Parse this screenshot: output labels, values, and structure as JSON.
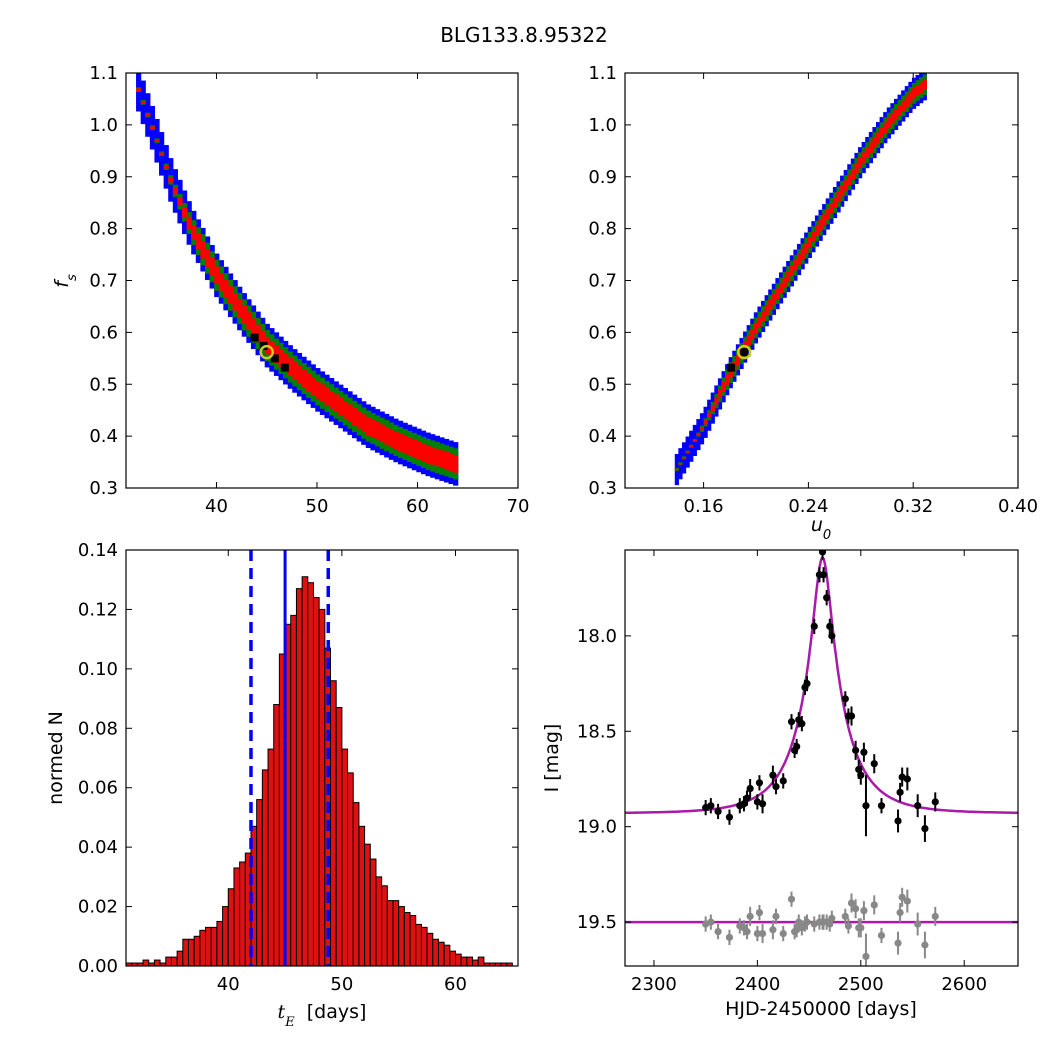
{
  "figure": {
    "title": "BLG133.8.95322"
  },
  "colors": {
    "c1": "#0000ff",
    "c2": "#008000",
    "c3": "#ff0000",
    "c4": "#000000",
    "bar_fill": "#dd1111",
    "bar_edge": "#000000",
    "median_line": "#0000ff",
    "model_line": "#aa1aaa",
    "marker_ring": "#cccc22",
    "points_main": "#000000",
    "points_resid": "#888888"
  },
  "chart_data": [
    {
      "type": "heatmap",
      "panel": "fs_vs_tE",
      "title": "",
      "xlabel": "",
      "ylabel": "f_s",
      "ylabel_main": "f",
      "ylabel_sub": "s",
      "xlim": [
        31,
        70
      ],
      "ylim": [
        0.3,
        1.1
      ],
      "xticks": [
        "40",
        "50",
        "60",
        "70"
      ],
      "xtick_values": [
        40,
        50,
        60,
        70
      ],
      "yticks": [
        "0.3",
        "0.4",
        "0.5",
        "0.6",
        "0.7",
        "0.8",
        "0.9",
        "1.0",
        "1.1"
      ],
      "ytick_values": [
        0.3,
        0.4,
        0.5,
        0.6,
        0.7,
        0.8,
        0.9,
        1.0,
        1.1
      ],
      "ridge": [
        [
          32.0,
          1.08
        ],
        [
          33.5,
          1.0
        ],
        [
          35.5,
          0.89
        ],
        [
          37.5,
          0.8
        ],
        [
          40.0,
          0.71
        ],
        [
          42.5,
          0.64
        ],
        [
          45.0,
          0.575
        ],
        [
          47.5,
          0.53
        ],
        [
          50.0,
          0.49
        ],
        [
          52.5,
          0.455
        ],
        [
          55.0,
          0.42
        ],
        [
          58.0,
          0.39
        ],
        [
          61.0,
          0.365
        ],
        [
          64.0,
          0.345
        ]
      ],
      "best_fit": [
        45.0,
        0.562
      ]
    },
    {
      "type": "heatmap",
      "panel": "fs_vs_u0",
      "title": "",
      "xlabel": "u_0",
      "xlabel_main": "u",
      "xlabel_sub": "0",
      "ylabel": "",
      "xlim": [
        0.1,
        0.4
      ],
      "ylim": [
        0.3,
        1.1
      ],
      "xticks": [
        "0.16",
        "0.24",
        "0.32",
        "0.40"
      ],
      "xtick_values": [
        0.16,
        0.24,
        0.32,
        0.4
      ],
      "yticks": [
        "0.3",
        "0.4",
        "0.5",
        "0.6",
        "0.7",
        "0.8",
        "0.9",
        "1.0",
        "1.1"
      ],
      "ytick_values": [
        0.3,
        0.4,
        0.5,
        0.6,
        0.7,
        0.8,
        0.9,
        1.0,
        1.1
      ],
      "ridge": [
        [
          0.138,
          0.33
        ],
        [
          0.16,
          0.42
        ],
        [
          0.18,
          0.52
        ],
        [
          0.2,
          0.61
        ],
        [
          0.22,
          0.69
        ],
        [
          0.24,
          0.77
        ],
        [
          0.26,
          0.85
        ],
        [
          0.28,
          0.93
        ],
        [
          0.3,
          1.0
        ],
        [
          0.32,
          1.06
        ],
        [
          0.33,
          1.08
        ]
      ],
      "best_fit": [
        0.191,
        0.562
      ]
    },
    {
      "type": "bar",
      "panel": "tE_histogram",
      "title": "",
      "xlabel": "t_E  [days]",
      "xlabel_main": "t",
      "xlabel_sub": "E",
      "xlabel_rest": "  [days]",
      "ylabel": "normed N",
      "xlim": [
        31,
        65.5
      ],
      "ylim": [
        0.0,
        0.14
      ],
      "xticks": [
        "40",
        "50",
        "60"
      ],
      "xtick_values": [
        40,
        50,
        60
      ],
      "yticks": [
        "0.00",
        "0.02",
        "0.04",
        "0.06",
        "0.08",
        "0.10",
        "0.12",
        "0.14"
      ],
      "ytick_values": [
        0.0,
        0.02,
        0.04,
        0.06,
        0.08,
        0.1,
        0.12,
        0.14
      ],
      "bin_start": 31.0,
      "bin_width": 0.5,
      "values": [
        0.001,
        0.001,
        0.001,
        0.002,
        0.001,
        0.002,
        0.001,
        0.003,
        0.003,
        0.005,
        0.009,
        0.009,
        0.01,
        0.012,
        0.013,
        0.013,
        0.015,
        0.02,
        0.026,
        0.033,
        0.035,
        0.038,
        0.047,
        0.056,
        0.066,
        0.073,
        0.088,
        0.105,
        0.115,
        0.118,
        0.127,
        0.131,
        0.129,
        0.124,
        0.12,
        0.107,
        0.096,
        0.087,
        0.073,
        0.065,
        0.055,
        0.047,
        0.041,
        0.036,
        0.03,
        0.027,
        0.022,
        0.022,
        0.02,
        0.018,
        0.017,
        0.014,
        0.013,
        0.011,
        0.009,
        0.008,
        0.007,
        0.005,
        0.004,
        0.003,
        0.003,
        0.002,
        0.003,
        0.001,
        0.001,
        0.001,
        0.001,
        0.001,
        0.0
      ],
      "median": 45.0,
      "lower": 42.0,
      "upper": 48.8
    },
    {
      "type": "scatter",
      "panel": "light_curve",
      "title": "",
      "xlabel": "HJD-2450000 [days]",
      "ylabel": "I [mag]",
      "xlim": [
        2272,
        2652
      ],
      "ylim": [
        19.73,
        17.55
      ],
      "y_inverted": true,
      "xticks": [
        "2300",
        "2400",
        "2500",
        "2600"
      ],
      "xtick_values": [
        2300,
        2400,
        2500,
        2600
      ],
      "yticks": [
        "18.0",
        "18.5",
        "19.0",
        "19.5"
      ],
      "ytick_values": [
        18.0,
        18.5,
        19.0,
        19.5
      ],
      "model": {
        "t0": 2463,
        "tE": 45.0,
        "u0": 0.19,
        "fs": 0.562,
        "baseline": 18.93,
        "residual_level": 19.5
      },
      "data": [
        [
          2350,
          18.9,
          0.04
        ],
        [
          2355,
          18.89,
          0.04
        ],
        [
          2362,
          18.92,
          0.04
        ],
        [
          2373,
          18.95,
          0.04
        ],
        [
          2383,
          18.89,
          0.04
        ],
        [
          2387,
          18.88,
          0.04
        ],
        [
          2390,
          18.85,
          0.04
        ],
        [
          2393,
          18.8,
          0.05
        ],
        [
          2400,
          18.87,
          0.04
        ],
        [
          2402,
          18.77,
          0.04
        ],
        [
          2405,
          18.88,
          0.05
        ],
        [
          2415,
          18.73,
          0.05
        ],
        [
          2418,
          18.79,
          0.04
        ],
        [
          2425,
          18.76,
          0.04
        ],
        [
          2433,
          18.45,
          0.04
        ],
        [
          2436,
          18.6,
          0.04
        ],
        [
          2438,
          18.58,
          0.04
        ],
        [
          2440,
          18.44,
          0.04
        ],
        [
          2443,
          18.46,
          0.04
        ],
        [
          2446,
          18.27,
          0.04
        ],
        [
          2448,
          18.25,
          0.04
        ],
        [
          2455,
          17.95,
          0.04
        ],
        [
          2460,
          17.68,
          0.04
        ],
        [
          2463,
          17.56,
          0.04
        ],
        [
          2464,
          17.68,
          0.04
        ],
        [
          2467,
          17.8,
          0.04
        ],
        [
          2470,
          17.95,
          0.04
        ],
        [
          2472,
          18.0,
          0.04
        ],
        [
          2485,
          18.33,
          0.04
        ],
        [
          2488,
          18.42,
          0.04
        ],
        [
          2491,
          18.42,
          0.05
        ],
        [
          2495,
          18.6,
          0.05
        ],
        [
          2498,
          18.7,
          0.05
        ],
        [
          2500,
          18.73,
          0.05
        ],
        [
          2503,
          18.61,
          0.05
        ],
        [
          2505,
          18.89,
          0.16
        ],
        [
          2513,
          18.67,
          0.05
        ],
        [
          2520,
          18.89,
          0.04
        ],
        [
          2536,
          18.97,
          0.06
        ],
        [
          2538,
          18.82,
          0.05
        ],
        [
          2540,
          18.74,
          0.05
        ],
        [
          2545,
          18.75,
          0.06
        ],
        [
          2555,
          18.89,
          0.06
        ],
        [
          2562,
          19.01,
          0.07
        ],
        [
          2572,
          18.87,
          0.05
        ]
      ],
      "residuals": [
        [
          2350,
          19.51,
          0.04
        ],
        [
          2355,
          19.5,
          0.04
        ],
        [
          2362,
          19.55,
          0.04
        ],
        [
          2373,
          19.58,
          0.04
        ],
        [
          2383,
          19.52,
          0.04
        ],
        [
          2387,
          19.53,
          0.04
        ],
        [
          2390,
          19.55,
          0.04
        ],
        [
          2393,
          19.47,
          0.05
        ],
        [
          2400,
          19.56,
          0.04
        ],
        [
          2402,
          19.45,
          0.04
        ],
        [
          2405,
          19.56,
          0.05
        ],
        [
          2415,
          19.54,
          0.05
        ],
        [
          2418,
          19.47,
          0.04
        ],
        [
          2425,
          19.56,
          0.04
        ],
        [
          2433,
          19.38,
          0.04
        ],
        [
          2436,
          19.55,
          0.04
        ],
        [
          2438,
          19.54,
          0.04
        ],
        [
          2440,
          19.5,
          0.04
        ],
        [
          2443,
          19.53,
          0.04
        ],
        [
          2446,
          19.51,
          0.04
        ],
        [
          2448,
          19.5,
          0.04
        ],
        [
          2455,
          19.51,
          0.04
        ],
        [
          2460,
          19.5,
          0.04
        ],
        [
          2463,
          19.5,
          0.04
        ],
        [
          2464,
          19.5,
          0.04
        ],
        [
          2467,
          19.5,
          0.04
        ],
        [
          2470,
          19.51,
          0.04
        ],
        [
          2472,
          19.48,
          0.04
        ],
        [
          2485,
          19.47,
          0.04
        ],
        [
          2488,
          19.52,
          0.04
        ],
        [
          2491,
          19.4,
          0.05
        ],
        [
          2495,
          19.43,
          0.05
        ],
        [
          2498,
          19.53,
          0.05
        ],
        [
          2500,
          19.53,
          0.05
        ],
        [
          2503,
          19.44,
          0.05
        ],
        [
          2505,
          19.68,
          0.12
        ],
        [
          2513,
          19.41,
          0.05
        ],
        [
          2520,
          19.57,
          0.04
        ],
        [
          2536,
          19.61,
          0.06
        ],
        [
          2538,
          19.45,
          0.05
        ],
        [
          2540,
          19.37,
          0.05
        ],
        [
          2545,
          19.39,
          0.06
        ],
        [
          2555,
          19.51,
          0.06
        ],
        [
          2562,
          19.62,
          0.07
        ],
        [
          2572,
          19.47,
          0.05
        ]
      ]
    }
  ]
}
